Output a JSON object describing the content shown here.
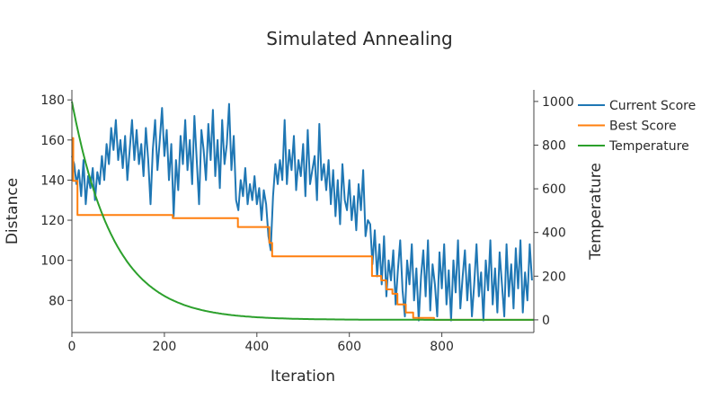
{
  "chart_data": {
    "type": "line",
    "title": "Simulated Annealing",
    "xlabel": "Iteration",
    "ylabel": "Distance",
    "y2label": "Temperature",
    "xlim": [
      0,
      999
    ],
    "ylim": [
      64,
      185
    ],
    "y2lim": [
      -58,
      1053
    ],
    "xticks": [
      0,
      200,
      400,
      600,
      800
    ],
    "yticks": [
      80,
      100,
      120,
      140,
      160,
      180
    ],
    "y2ticks": [
      0,
      200,
      400,
      600,
      800,
      1000
    ],
    "grid": false,
    "legend_position": "top-right",
    "series": [
      {
        "name": "Current Score",
        "axis": "left",
        "color": "#1f77b4",
        "x_step": 5,
        "values": [
          152,
          148,
          138,
          145,
          132,
          150,
          128,
          142,
          136,
          146,
          130,
          144,
          138,
          152,
          140,
          158,
          148,
          166,
          155,
          170,
          150,
          160,
          146,
          162,
          140,
          155,
          170,
          150,
          165,
          148,
          158,
          142,
          166,
          150,
          128,
          155,
          170,
          145,
          160,
          176,
          152,
          165,
          140,
          158,
          122,
          150,
          135,
          162,
          148,
          170,
          145,
          160,
          138,
          172,
          150,
          128,
          165,
          155,
          140,
          168,
          150,
          175,
          142,
          160,
          136,
          170,
          148,
          158,
          178,
          145,
          162,
          130,
          125,
          140,
          132,
          146,
          128,
          138,
          130,
          142,
          128,
          136,
          120,
          135,
          128,
          112,
          105,
          132,
          148,
          138,
          150,
          140,
          170,
          138,
          155,
          145,
          162,
          135,
          150,
          142,
          158,
          132,
          165,
          138,
          145,
          152,
          130,
          168,
          140,
          148,
          135,
          150,
          128,
          145,
          122,
          140,
          118,
          148,
          130,
          125,
          140,
          120,
          132,
          115,
          138,
          125,
          145,
          112,
          120,
          118,
          98,
          115,
          92,
          108,
          88,
          112,
          82,
          100,
          90,
          105,
          78,
          95,
          110,
          85,
          72,
          100,
          88,
          108,
          80,
          96,
          70,
          92,
          105,
          82,
          110,
          75,
          98,
          88,
          72,
          104,
          86,
          108,
          78,
          95,
          70,
          100,
          84,
          110,
          76,
          92,
          105,
          80,
          98,
          72,
          88,
          108,
          82,
          94,
          70,
          100,
          85,
          110,
          78,
          96,
          74,
          104,
          88,
          72,
          108,
          82,
          98,
          76,
          106,
          86,
          110,
          74,
          94,
          80,
          108,
          90
        ]
      },
      {
        "name": "Best Score",
        "axis": "left",
        "color": "#ff7f0e",
        "shape": "step",
        "x": [
          0,
          3,
          12,
          218,
          359,
          427,
          433,
          649,
          669,
          680,
          693,
          704,
          722,
          738,
          783,
          999
        ],
        "values": [
          161,
          139.6,
          122.6,
          121,
          116.6,
          108.7,
          102,
          92.2,
          90,
          85.5,
          83.3,
          78,
          74,
          71.3,
          70.3,
          70.3
        ]
      },
      {
        "name": "Temperature",
        "axis": "right",
        "color": "#2ca02c",
        "initial_temperature": 1000,
        "cooling_rate": 0.989
      }
    ]
  }
}
